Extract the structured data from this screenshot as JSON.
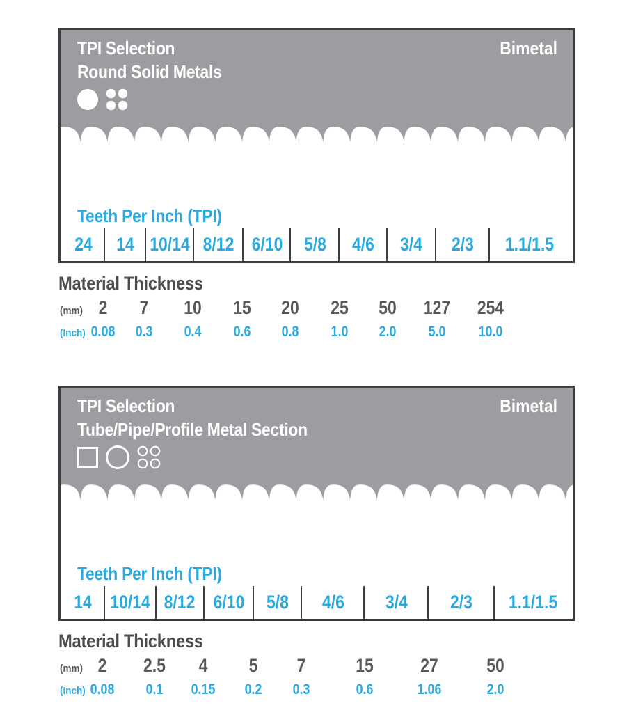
{
  "colors": {
    "accent_blue": "#29abe2",
    "panel_gray": "#9b9da0",
    "border_dark": "#3d3e40",
    "text_dark": "#57585a"
  },
  "panels": [
    {
      "title": "TPI Selection",
      "subtitle": "Round Solid Metals",
      "badge": "Bimetal",
      "icons": [
        "solid-round-bar-icon",
        "solid-round-bundle-icon"
      ],
      "tpi_heading": "Teeth Per Inch (TPI)",
      "tpi_values": [
        "24",
        "14",
        "10/14",
        "8/12",
        "6/10",
        "5/8",
        "4/6",
        "3/4",
        "2/3",
        "1.1/1.5"
      ],
      "thickness_heading": "Material Thickness",
      "mm_label": "(mm)",
      "inch_label": "(Inch)",
      "mm_values": [
        "2",
        "7",
        "10",
        "15",
        "20",
        "25",
        "50",
        "127",
        "254"
      ],
      "inch_values": [
        "0.08",
        "0.3",
        "0.4",
        "0.6",
        "0.8",
        "1.0",
        "2.0",
        "5.0",
        "10.0"
      ]
    },
    {
      "title": "TPI Selection",
      "subtitle": "Tube/Pipe/Profile Metal Section",
      "badge": "Bimetal",
      "icons": [
        "square-tube-icon",
        "round-tube-icon",
        "tube-bundle-icon"
      ],
      "tpi_heading": "Teeth Per Inch (TPI)",
      "tpi_values": [
        "14",
        "10/14",
        "8/12",
        "6/10",
        "5/8",
        "4/6",
        "3/4",
        "2/3",
        "1.1/1.5"
      ],
      "thickness_heading": "Material Thickness",
      "mm_label": "(mm)",
      "inch_label": "(Inch)",
      "mm_values": [
        "2",
        "2.5",
        "4",
        "5",
        "7",
        "15",
        "27",
        "50"
      ],
      "inch_values": [
        "0.08",
        "0.1",
        "0.15",
        "0.2",
        "0.3",
        "0.6",
        "1.06",
        "2.0"
      ]
    }
  ],
  "chart_data": [
    {
      "type": "table",
      "title": "TPI Selection",
      "subtitle": "Round Solid Metals",
      "blade_type": "Bimetal",
      "tpi_steps": [
        "24",
        "14",
        "10/14",
        "8/12",
        "6/10",
        "5/8",
        "4/6",
        "3/4",
        "2/3",
        "1.1/1.5"
      ],
      "material_thickness_mm": [
        2,
        7,
        10,
        15,
        20,
        25,
        50,
        127,
        254
      ],
      "material_thickness_inch": [
        0.08,
        0.3,
        0.4,
        0.6,
        0.8,
        1.0,
        2.0,
        5.0,
        10.0
      ],
      "layout": "thickness values mark boundaries between adjacent TPI steps"
    },
    {
      "type": "table",
      "title": "TPI Selection",
      "subtitle": "Tube/Pipe/Profile Metal Section",
      "blade_type": "Bimetal",
      "tpi_steps": [
        "14",
        "10/14",
        "8/12",
        "6/10",
        "5/8",
        "4/6",
        "3/4",
        "2/3",
        "1.1/1.5"
      ],
      "material_thickness_mm": [
        2,
        2.5,
        4,
        5,
        7,
        15,
        27,
        50
      ],
      "material_thickness_inch": [
        0.08,
        0.1,
        0.15,
        0.2,
        0.3,
        0.6,
        1.06,
        2.0
      ],
      "layout": "thickness values mark boundaries between adjacent TPI steps"
    }
  ]
}
